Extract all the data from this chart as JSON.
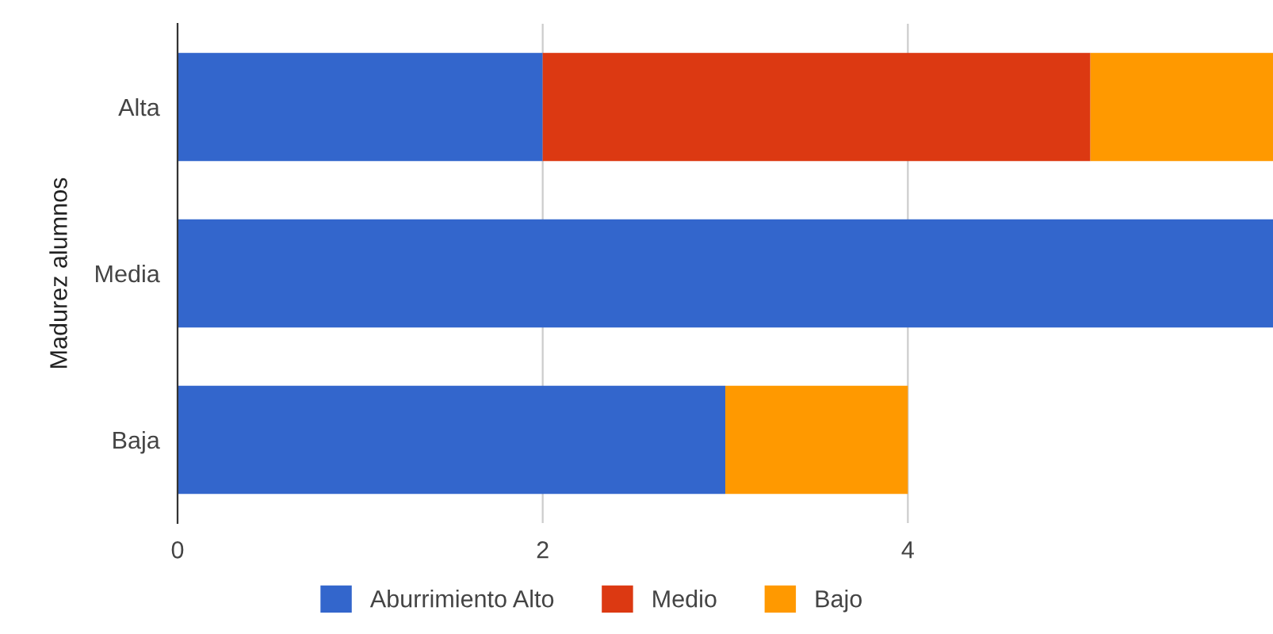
{
  "chart_data": {
    "type": "bar",
    "orientation": "horizontal",
    "stacked": true,
    "ylabel": "Madurez alumnos",
    "categories": [
      "Alta",
      "Media",
      "Baja"
    ],
    "series": [
      {
        "name": "Aburrimiento Alto",
        "color": "#3366cc",
        "values": [
          2,
          6,
          3
        ]
      },
      {
        "name": "Medio",
        "color": "#dc3912",
        "values": [
          3,
          0,
          0
        ]
      },
      {
        "name": "Bajo",
        "color": "#ff9900",
        "values": [
          1,
          0,
          1
        ]
      }
    ],
    "xlim": [
      0,
      6
    ],
    "xticks": [
      0,
      2,
      4
    ],
    "grid": "x",
    "legend": "bottom"
  }
}
